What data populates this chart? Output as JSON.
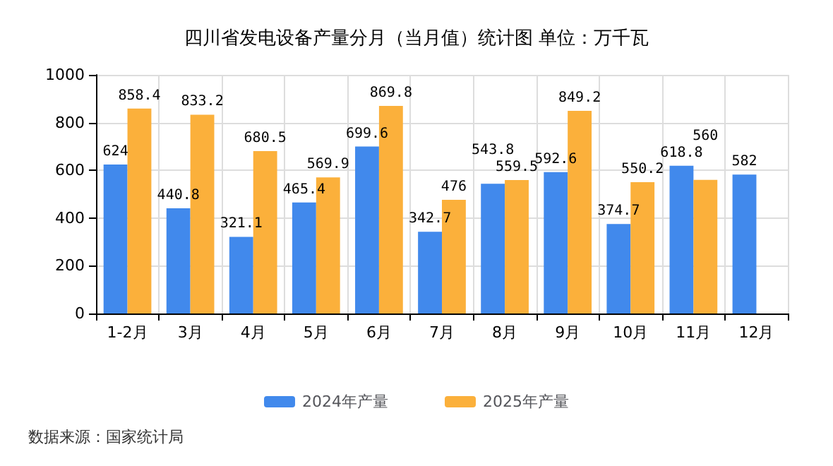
{
  "chart_data": {
    "type": "bar",
    "title": "四川省发电设备产量分月（当月值）统计图 单位：万千瓦",
    "categories": [
      "1-2月",
      "3月",
      "4月",
      "5月",
      "6月",
      "7月",
      "8月",
      "9月",
      "10月",
      "11月",
      "12月"
    ],
    "series": [
      {
        "name": "2024年产量",
        "color": "#4189ec",
        "values": [
          624,
          440.8,
          321.1,
          465.4,
          699.6,
          342.7,
          543.8,
          592.6,
          374.7,
          618.8,
          582
        ]
      },
      {
        "name": "2025年产量",
        "color": "#fbb03b",
        "values": [
          858.4,
          833.2,
          680.5,
          569.9,
          869.8,
          476,
          559.5,
          849.2,
          550.2,
          560,
          null
        ]
      }
    ],
    "ylim": [
      0,
      1000
    ],
    "yticks": [
      0,
      200,
      400,
      600,
      800,
      1000
    ],
    "grid": true,
    "legend": "bottom",
    "data_labels": true,
    "annotations": [
      "数据来源：国家统计局"
    ]
  }
}
